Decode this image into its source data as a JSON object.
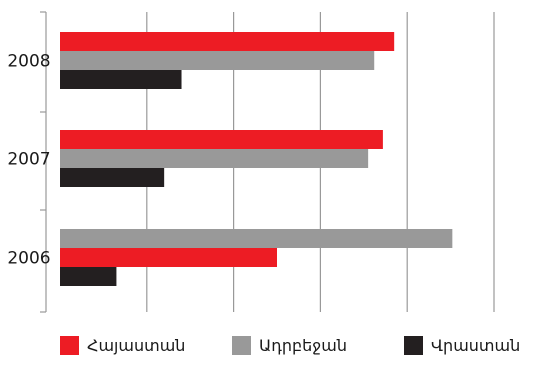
{
  "chart_data": {
    "type": "bar",
    "orientation": "horizontal",
    "categories": [
      "2008",
      "2007",
      "2006"
    ],
    "series": [
      {
        "name": "Հայաստան",
        "color": "#ed1c24",
        "values": [
          3.85,
          3.72,
          2.5
        ]
      },
      {
        "name": "Ադրբեջան",
        "color": "#999999",
        "values": [
          3.62,
          3.55,
          4.52
        ]
      },
      {
        "name": "Վրաստան",
        "color": "#231f20",
        "values": [
          1.4,
          1.2,
          0.65
        ]
      }
    ],
    "series_order_by_category": {
      "2008": [
        "Հայաստան",
        "Ադրբեջան",
        "Վրաստան"
      ],
      "2007": [
        "Հայաստան",
        "Ադրբեջան",
        "Վրաստան"
      ],
      "2006": [
        "Ադրբեջան",
        "Հայաստան",
        "Վրաստան"
      ]
    },
    "xlim": [
      0,
      5
    ],
    "x_tick_labels_shown": false,
    "grid": true,
    "legend_position": "bottom",
    "colors": {
      "grid": "#999999",
      "axis": "#999999"
    }
  }
}
